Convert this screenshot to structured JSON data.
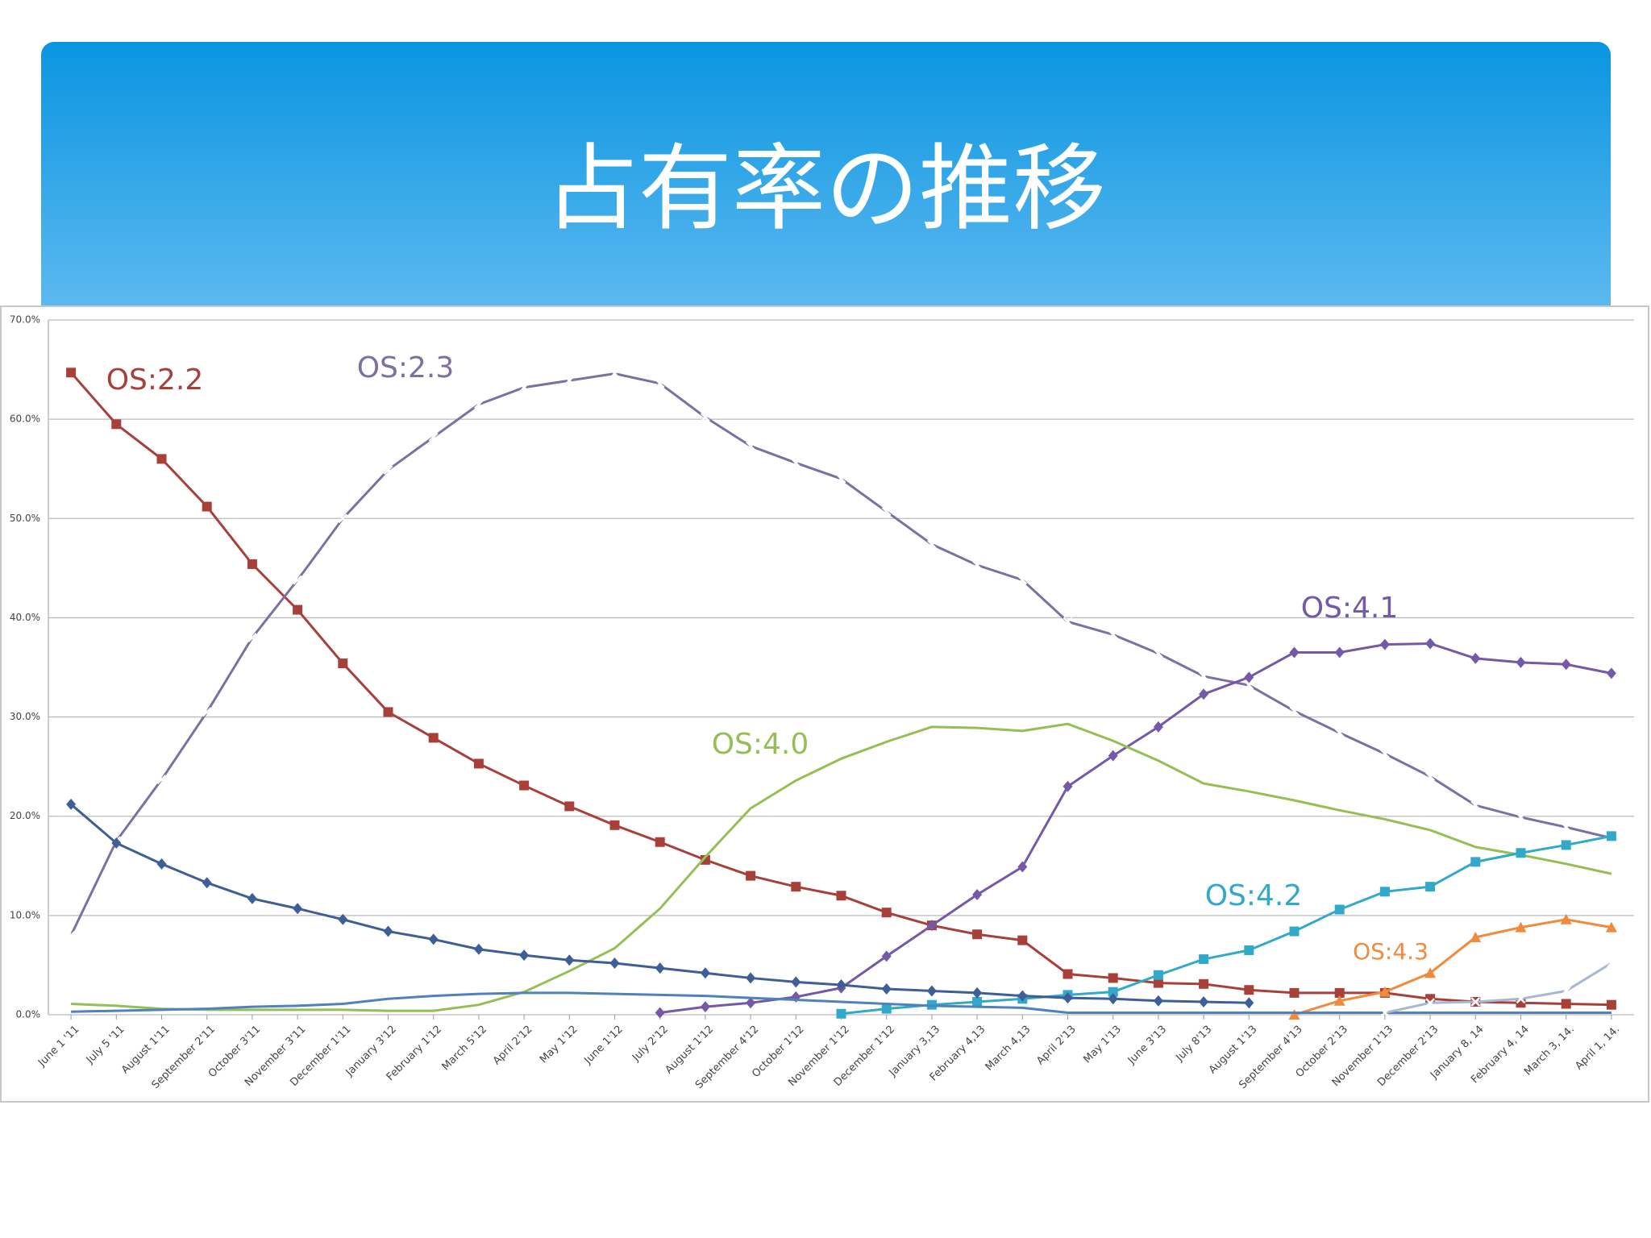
{
  "chart_data": {
    "type": "line",
    "title": "占有率の推移",
    "categories": [
      "June 1 '11",
      "July 5 '11",
      "August 1'11",
      "September 2'11",
      "October 3'11",
      "November 3'11",
      "December 1'11",
      "January 3'12",
      "February 1'12",
      "March 5'12",
      "April 2'12",
      "May 1'12",
      "June 1'12",
      "July 2'12",
      "August 1'12",
      "September 4'12",
      "October 1'12",
      "November 1'12",
      "December 1'12",
      "January 3,13",
      "February 4,13",
      "March 4,13",
      "April 2'13",
      "May 1'13",
      "June 3'13",
      "July 8'13",
      "August 1'13",
      "September 4'13",
      "October 2'13",
      "November 1'13",
      "December 2'13",
      "January 8, 14",
      "February 4, 14",
      "March 3, 14.",
      "April 1, 14."
    ],
    "ylim": [
      0,
      70
    ],
    "yticks": [
      {
        "value": 0,
        "label": "0.0%"
      },
      {
        "value": 10,
        "label": "10.0%"
      },
      {
        "value": 20,
        "label": "20.0%"
      },
      {
        "value": 30,
        "label": "30.0%"
      },
      {
        "value": 40,
        "label": "40.0%"
      },
      {
        "value": 50,
        "label": "50.0%"
      },
      {
        "value": 60,
        "label": "60.0%"
      },
      {
        "value": 70,
        "label": "70.0%"
      }
    ],
    "grid": true,
    "series": [
      {
        "name": "OS:2.2",
        "color": "#a8403a",
        "marker": "square",
        "values": [
          64.7,
          59.5,
          56,
          51.2,
          45.4,
          40.8,
          35.4,
          30.5,
          27.9,
          25.3,
          23.1,
          21,
          19.1,
          17.4,
          15.6,
          14,
          12.9,
          12,
          10.3,
          9,
          8.1,
          7.5,
          4.1,
          3.7,
          3.2,
          3.1,
          2.5,
          2.2,
          2.2,
          2.2,
          1.6,
          1.3,
          1.2,
          1.1,
          1.0
        ]
      },
      {
        "name": "OS:2.3",
        "color": "#7e6fa3",
        "marker": "x",
        "values": [
          8,
          17.5,
          23.7,
          30.5,
          38,
          43.8,
          50,
          54.9,
          58.2,
          61.5,
          63.2,
          63.9,
          64.6,
          63.6,
          60.2,
          57.3,
          55.6,
          54,
          50.7,
          47.4,
          45.3,
          43.8,
          39.6,
          38.3,
          36.4,
          34.1,
          33.2,
          30.6,
          28.4,
          26.3,
          24,
          21.1,
          19.9,
          18.9,
          17.8
        ]
      },
      {
        "name": "OS:4.1",
        "color": "#7459a6",
        "marker": "diamond",
        "values": [
          null,
          null,
          null,
          null,
          null,
          null,
          null,
          null,
          null,
          null,
          null,
          null,
          null,
          0.2,
          0.8,
          1.2,
          1.8,
          2.7,
          5.9,
          9.0,
          12.1,
          14.9,
          23,
          26.1,
          29,
          32.3,
          34,
          36.5,
          36.5,
          37.3,
          37.4,
          35.9,
          35.5,
          35.3,
          34.4
        ]
      },
      {
        "name": "OS:4.0",
        "color": "#95bf55",
        "marker": "none",
        "values": [
          1.1,
          0.9,
          0.6,
          0.5,
          0.5,
          0.5,
          0.5,
          0.4,
          0.4,
          1.0,
          2.3,
          4.4,
          6.7,
          10.7,
          15.9,
          20.8,
          23.6,
          25.8,
          27.5,
          29.0,
          28.9,
          28.6,
          29.3,
          27.6,
          25.6,
          23.3,
          22.5,
          21.6,
          20.6,
          19.7,
          18.6,
          16.9,
          16.1,
          15.2,
          14.2
        ]
      },
      {
        "name": "OS:4.2",
        "color": "#33a9c9",
        "marker": "square",
        "values": [
          null,
          null,
          null,
          null,
          null,
          null,
          null,
          null,
          null,
          null,
          null,
          null,
          null,
          null,
          null,
          null,
          null,
          0.1,
          0.6,
          1.0,
          1.3,
          1.6,
          2.0,
          2.3,
          4.0,
          5.6,
          6.5,
          8.4,
          10.6,
          12.4,
          12.9,
          15.4,
          16.3,
          17.1,
          18.0
        ]
      },
      {
        "name": "OS:4.3",
        "color": "#f08a3c",
        "marker": "triangle",
        "values": [
          null,
          null,
          null,
          null,
          null,
          null,
          null,
          null,
          null,
          null,
          null,
          null,
          null,
          null,
          null,
          null,
          null,
          null,
          null,
          null,
          null,
          null,
          null,
          null,
          null,
          null,
          null,
          0.0,
          1.4,
          2.3,
          4.2,
          7.8,
          8.8,
          9.6,
          8.8
        ]
      },
      {
        "color": "#3d5f96",
        "marker": "diamond",
        "values": [
          21.2,
          17.3,
          15.2,
          13.3,
          11.7,
          10.7,
          9.6,
          8.4,
          7.6,
          6.6,
          6.0,
          5.5,
          5.2,
          4.7,
          4.2,
          3.7,
          3.3,
          3.0,
          2.6,
          2.4,
          2.2,
          1.9,
          1.7,
          1.6,
          1.4,
          1.3,
          1.2,
          null,
          null,
          null,
          null,
          null,
          null,
          null,
          null
        ]
      },
      {
        "color": "#4f81bd",
        "marker": "none",
        "values": [
          0.3,
          0.4,
          0.5,
          0.6,
          0.8,
          0.9,
          1.1,
          1.6,
          1.9,
          2.1,
          2.2,
          2.2,
          2.1,
          2.0,
          1.9,
          1.7,
          1.5,
          1.3,
          1.1,
          0.9,
          0.8,
          0.7,
          0.2,
          0.2,
          0.2,
          0.2,
          0.2,
          0.2,
          0.2,
          0.2,
          0.2,
          0.2,
          0.2,
          0.2,
          0.2
        ]
      },
      {
        "color": "#a9b7d2",
        "marker": "x",
        "values": [
          null,
          null,
          null,
          null,
          null,
          null,
          null,
          null,
          null,
          null,
          null,
          null,
          null,
          null,
          null,
          null,
          null,
          null,
          null,
          null,
          null,
          null,
          null,
          null,
          null,
          null,
          null,
          null,
          null,
          0.2,
          1.2,
          1.3,
          1.6,
          2.4,
          5.2
        ]
      }
    ]
  }
}
